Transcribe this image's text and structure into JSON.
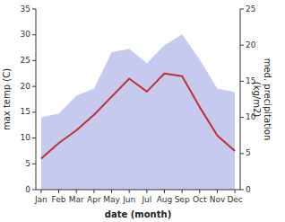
{
  "chart_data": {
    "type": "line",
    "xlabel": "date (month)",
    "ylabel": "max temp (C)",
    "y2label": "med. precipitation\n(kg/m2)",
    "categories": [
      "Jan",
      "Feb",
      "Mar",
      "Apr",
      "May",
      "Jun",
      "Jul",
      "Aug",
      "Sep",
      "Oct",
      "Nov",
      "Dec"
    ],
    "series": [
      {
        "type": "area",
        "axis": "y2",
        "color": "#c5caee",
        "values": [
          10.0,
          10.5,
          13.0,
          14.0,
          19.0,
          19.5,
          17.5,
          20.0,
          21.5,
          18.0,
          14.0,
          13.5
        ]
      },
      {
        "type": "line",
        "color": "#c03030",
        "values": [
          6.0,
          9.0,
          11.5,
          14.5,
          18.0,
          21.5,
          19.0,
          22.5,
          22.0,
          16.0,
          10.5,
          7.5
        ]
      }
    ],
    "ylim": [
      0,
      35
    ],
    "yticks": [
      0,
      5,
      10,
      15,
      20,
      25,
      30,
      35
    ],
    "y2lim": [
      0,
      25
    ],
    "y2ticks": [
      0,
      5,
      10,
      15,
      20,
      25
    ]
  }
}
